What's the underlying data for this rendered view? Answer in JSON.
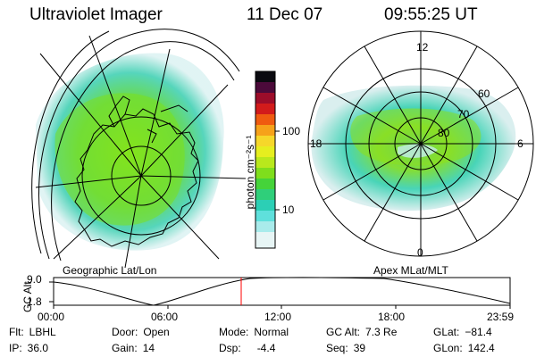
{
  "header": {
    "instrument": "Ultraviolet Imager",
    "date": "11 Dec 07",
    "time": "09:55:25 UT"
  },
  "colorbar": {
    "unit_label": "photon cm⁻²s⁻¹",
    "ticks": [
      "100",
      "10"
    ],
    "scale": "log"
  },
  "geo_panel": {
    "label": "Geographic Lat/Lon"
  },
  "apex_panel": {
    "label": "Apex MLat/MLT",
    "mlt_labels": {
      "top": "12",
      "left": "18",
      "right": "6",
      "bottom": "0"
    },
    "lat_labels": [
      "60",
      "70",
      "80"
    ]
  },
  "timeline": {
    "y_axis_label": "GC Alt",
    "y_ticks": [
      "9.0",
      "1.8"
    ],
    "x_ticks": [
      "00:00",
      "06:00",
      "12:00",
      "18:00",
      "23:59"
    ],
    "current_time_marker": "09:55:25",
    "marker_color": "#ff0000"
  },
  "info": {
    "flt": {
      "label": "Flt:",
      "value": "LBHL"
    },
    "ip": {
      "label": "IP:",
      "value": "36.0"
    },
    "door": {
      "label": "Door:",
      "value": "Open"
    },
    "gain": {
      "label": "Gain:",
      "value": "14"
    },
    "mode": {
      "label": "Mode:",
      "value": "Normal"
    },
    "dsp": {
      "label": "Dsp:",
      "value": "-4.4"
    },
    "gc_alt": {
      "label": "GC Alt:",
      "value": "7.3 Re"
    },
    "seq": {
      "label": "Seq:",
      "value": "39"
    },
    "glat": {
      "label": "GLat:",
      "value": "−81.4"
    },
    "glon": {
      "label": "GLon:",
      "value": "142.4"
    }
  }
}
